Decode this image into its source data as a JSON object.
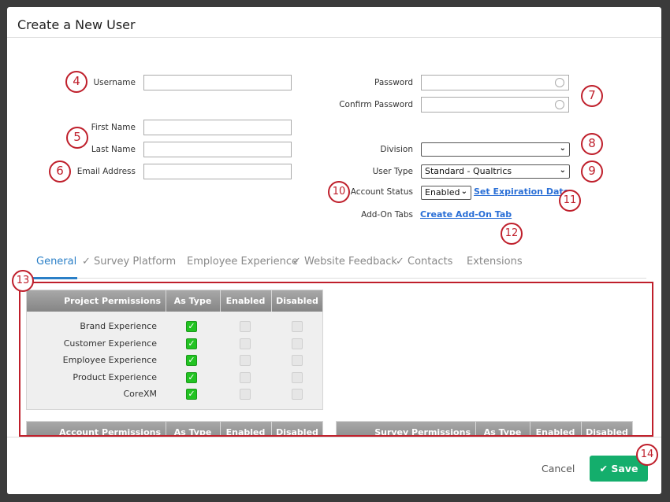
{
  "dialog": {
    "title": "Create a New User"
  },
  "form": {
    "username": "Username",
    "first_name": "First Name",
    "last_name": "Last Name",
    "email": "Email Address",
    "password": "Password",
    "confirm_password": "Confirm Password",
    "division": "Division",
    "division_value": "",
    "user_type": "User Type",
    "user_type_value": "Standard - Qualtrics",
    "account_status": "Account Status",
    "account_status_value": "Enabled",
    "set_expiration": "Set Expiration Date",
    "addon_tabs": "Add-On Tabs",
    "create_addon": "Create Add-On Tab"
  },
  "tabs": [
    {
      "label": "General",
      "active": true
    },
    {
      "label": "✓ Survey Platform"
    },
    {
      "label": "Employee Experience"
    },
    {
      "label": "✓ Website Feedback"
    },
    {
      "label": "✓ Contacts"
    },
    {
      "label": "Extensions"
    }
  ],
  "project_table": {
    "headers": [
      "Project Permissions",
      "As Type",
      "Enabled",
      "Disabled"
    ],
    "rows": [
      "Brand Experience",
      "Customer Experience",
      "Employee Experience",
      "Product Experience",
      "CoreXM"
    ]
  },
  "account_table": {
    "headers": [
      "Account Permissions",
      "As Type",
      "Enabled",
      "Disabled"
    ]
  },
  "survey_table": {
    "headers": [
      "Survey Permissions",
      "As Type",
      "Enabled",
      "Disabled"
    ]
  },
  "footer": {
    "cancel": "Cancel",
    "save": "Save"
  },
  "callouts": [
    "4",
    "5",
    "6",
    "7",
    "8",
    "9",
    "10",
    "11",
    "12",
    "13",
    "14"
  ],
  "colors": {
    "accent": "#2a7fc7",
    "save": "#14ae6c",
    "callout": "#bf1f2b",
    "check": "#22c322"
  }
}
